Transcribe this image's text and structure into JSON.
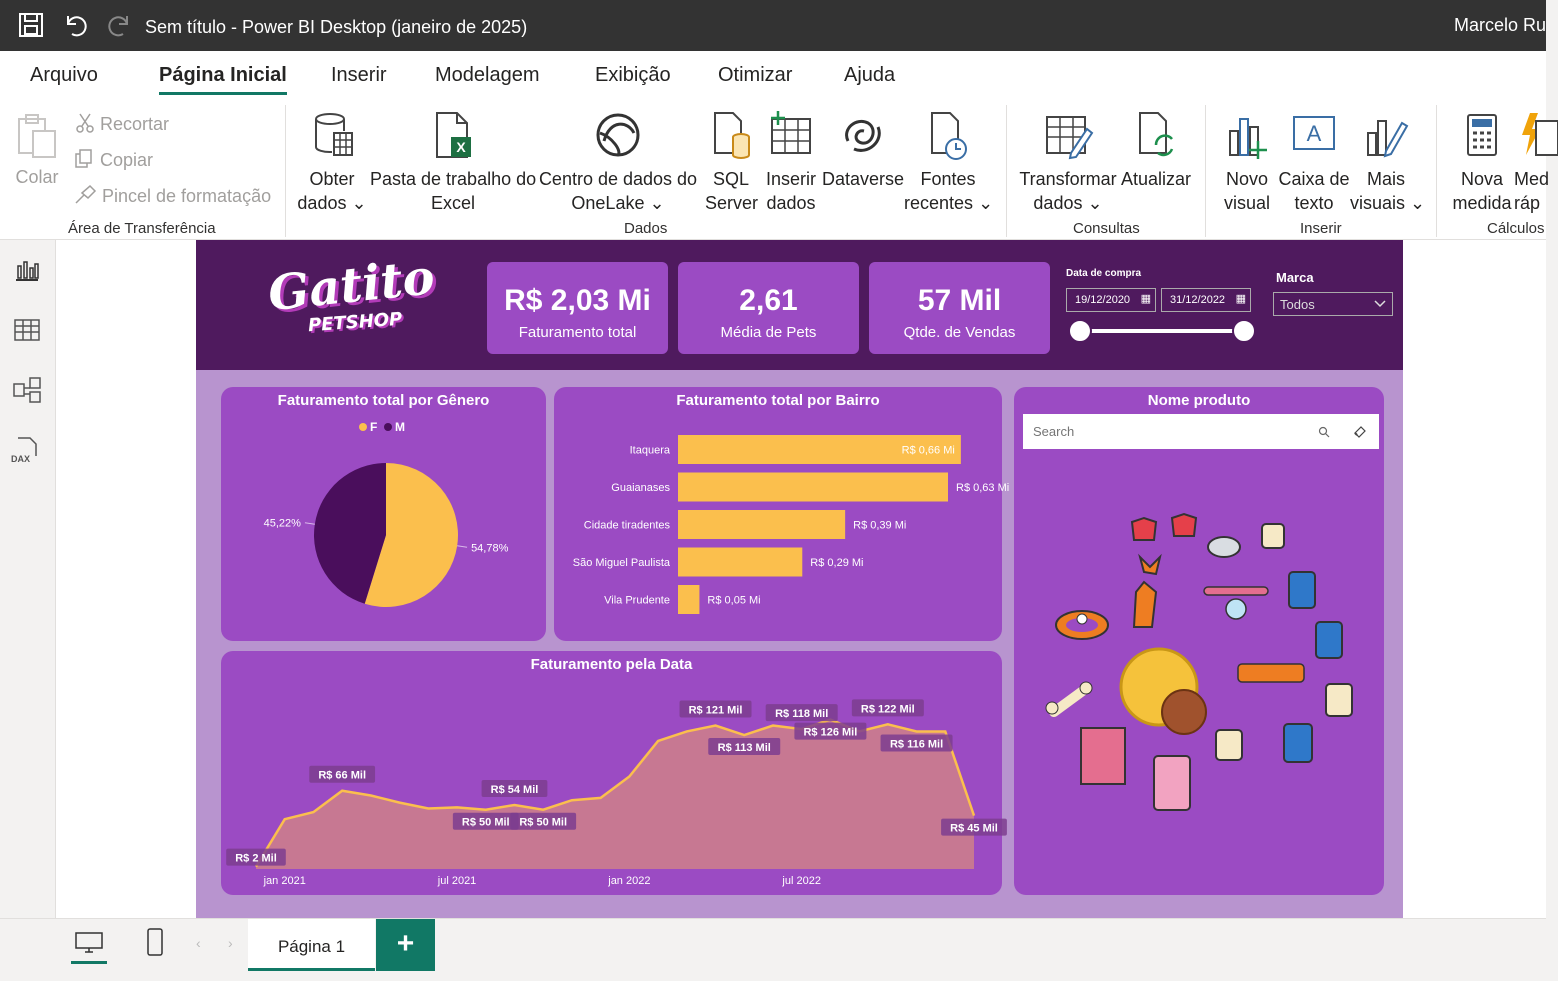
{
  "window": {
    "title": "Sem título - Power BI Desktop (janeiro de 2025)",
    "user": "Marcelo Ru"
  },
  "ribbon": {
    "tabs": [
      "Arquivo",
      "Página Inicial",
      "Inserir",
      "Modelagem",
      "Exibição",
      "Otimizar",
      "Ajuda"
    ],
    "active_tab": "Página Inicial",
    "clipboard": {
      "paste": "Colar",
      "cut": "Recortar",
      "copy": "Copiar",
      "format_painter": "Pincel de formatação",
      "group": "Área de Transferência"
    },
    "data": {
      "get_data_1": "Obter",
      "get_data_2": "dados",
      "excel_1": "Pasta de trabalho do",
      "excel_2": "Excel",
      "onelake_1": "Centro de dados do",
      "onelake_2": "OneLake",
      "sql_1": "SQL",
      "sql_2": "Server",
      "enter_1": "Inserir",
      "enter_2": "dados",
      "dataverse": "Dataverse",
      "recent_1": "Fontes",
      "recent_2": "recentes",
      "group": "Dados"
    },
    "queries": {
      "transform_1": "Transformar",
      "transform_2": "dados",
      "refresh": "Atualizar",
      "group": "Consultas"
    },
    "insert": {
      "visual_1": "Novo",
      "visual_2": "visual",
      "textbox_1": "Caixa de",
      "textbox_2": "texto",
      "more_1": "Mais",
      "more_2": "visuais",
      "group": "Inserir"
    },
    "calc": {
      "measure_1": "Nova",
      "measure_2": "medida",
      "quick_1": "Med",
      "quick_2": "ráp",
      "group": "Cálculos"
    }
  },
  "report": {
    "logo_top": "Gatito",
    "logo_bottom": "PETSHOP",
    "kpis": [
      {
        "value": "R$ 2,03 Mi",
        "label": "Faturamento total"
      },
      {
        "value": "2,61",
        "label": "Média de Pets"
      },
      {
        "value": "57 Mil",
        "label": "Qtde. de Vendas"
      }
    ],
    "date_filter": {
      "label": "Data de compra",
      "start": "19/12/2020",
      "end": "31/12/2022"
    },
    "brand_filter": {
      "label": "Marca",
      "value": "Todos"
    },
    "product_panel": {
      "title": "Nome produto",
      "search_placeholder": "Search"
    }
  },
  "chart_data": [
    {
      "type": "pie",
      "title": "Faturamento total por Gênero",
      "legend": [
        "F",
        "M"
      ],
      "values": [
        54.78,
        45.22
      ],
      "labels": [
        "54,78%",
        "45,22%"
      ],
      "colors": [
        "#fbbf4d",
        "#4a0e5c"
      ]
    },
    {
      "type": "bar",
      "orientation": "horizontal",
      "title": "Faturamento total por Bairro",
      "categories": [
        "Itaquera",
        "Guaianases",
        "Cidade tiradentes",
        "São Miguel Paulista",
        "Vila Prudente"
      ],
      "values": [
        0.66,
        0.63,
        0.39,
        0.29,
        0.05
      ],
      "labels": [
        "R$ 0,66 Mi",
        "R$ 0,63 Mi",
        "R$ 0,39 Mi",
        "R$ 0,29 Mi",
        "R$ 0,05 Mi"
      ],
      "color": "#fbbf4d",
      "xlim": [
        0,
        0.7
      ]
    },
    {
      "type": "area",
      "title": "Faturamento pela Data",
      "x_ticks": [
        "jan 2021",
        "jul 2021",
        "jan 2022",
        "jul 2022"
      ],
      "values": [
        2,
        42,
        48,
        66,
        62,
        56,
        51,
        52,
        50,
        54,
        50,
        58,
        60,
        78,
        108,
        116,
        121,
        113,
        121,
        118,
        126,
        116,
        122,
        116,
        116,
        45
      ],
      "ylim": [
        0,
        140
      ],
      "annotations": [
        {
          "i": 0,
          "label": "R$ 2 Mil"
        },
        {
          "i": 3,
          "label": "R$ 66 Mil"
        },
        {
          "i": 8,
          "label": "R$ 50 Mil"
        },
        {
          "i": 9,
          "label": "R$ 54 Mil"
        },
        {
          "i": 10,
          "label": "R$ 50 Mil"
        },
        {
          "i": 16,
          "label": "R$ 121 Mil"
        },
        {
          "i": 17,
          "label": "R$ 113 Mil"
        },
        {
          "i": 19,
          "label": "R$ 118 Mil"
        },
        {
          "i": 20,
          "label": "R$ 126 Mil"
        },
        {
          "i": 22,
          "label": "R$ 122 Mil"
        },
        {
          "i": 23,
          "label": "R$ 116 Mil"
        },
        {
          "i": 25,
          "label": "R$ 45 Mil"
        }
      ],
      "line_color": "#fbbf4d",
      "fill_color": "#c97a8f"
    }
  ],
  "bottom": {
    "page_tab": "Página 1",
    "add_label": "+"
  }
}
